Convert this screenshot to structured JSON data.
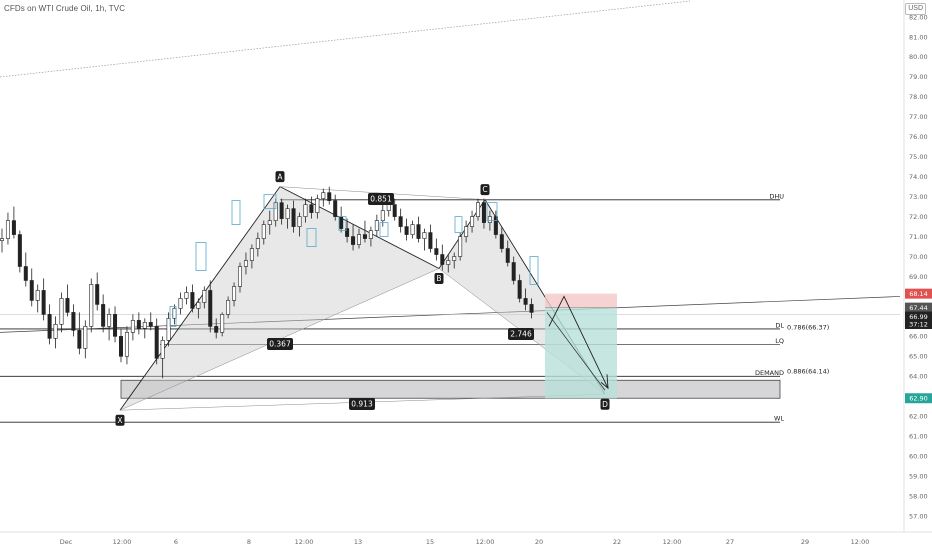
{
  "header": {
    "symbol_title": "CFDs on WTI Crude Oil, 1h, TVC",
    "currency": "USD"
  },
  "chart_data": {
    "type": "candlestick",
    "yaxis_ticks": [
      57.0,
      58.0,
      59.0,
      60.0,
      61.0,
      62.0,
      63.0,
      64.0,
      65.0,
      66.0,
      67.0,
      68.0,
      69.0,
      70.0,
      71.0,
      72.0,
      73.0,
      74.0,
      75.0,
      76.0,
      77.0,
      78.0,
      79.0,
      80.0,
      81.0,
      82.0
    ],
    "ylim": [
      56.6,
      83.2
    ],
    "xaxis_ticks": [
      "Dec",
      "12:00",
      "6",
      "8",
      "12:00",
      "13",
      "15",
      "12:00",
      "20",
      "22",
      "12:00",
      "27",
      "29",
      "12:00"
    ],
    "ohlc": [
      [
        70.8,
        71.4,
        70.2,
        70.9
      ],
      [
        70.9,
        72.2,
        70.6,
        71.8
      ],
      [
        71.8,
        72.5,
        70.9,
        71.1
      ],
      [
        71.1,
        71.3,
        69.2,
        69.5
      ],
      [
        69.5,
        70.2,
        68.5,
        68.8
      ],
      [
        68.8,
        69.4,
        67.5,
        67.8
      ],
      [
        67.8,
        68.6,
        67.2,
        68.3
      ],
      [
        68.3,
        68.9,
        66.8,
        67.1
      ],
      [
        67.1,
        67.6,
        65.6,
        65.9
      ],
      [
        65.9,
        67.0,
        65.4,
        66.6
      ],
      [
        66.6,
        68.2,
        66.2,
        67.9
      ],
      [
        67.9,
        68.6,
        67.0,
        67.2
      ],
      [
        67.2,
        67.6,
        66.0,
        66.3
      ],
      [
        66.3,
        67.2,
        65.1,
        65.4
      ],
      [
        65.4,
        66.8,
        64.9,
        66.5
      ],
      [
        66.5,
        68.9,
        66.2,
        68.6
      ],
      [
        68.6,
        69.2,
        67.3,
        67.6
      ],
      [
        67.6,
        68.1,
        66.2,
        66.5
      ],
      [
        66.5,
        67.4,
        65.8,
        67.1
      ],
      [
        67.1,
        67.5,
        65.7,
        66.0
      ],
      [
        66.0,
        66.4,
        64.7,
        65.0
      ],
      [
        65.0,
        66.5,
        64.6,
        66.2
      ],
      [
        66.2,
        67.1,
        65.8,
        66.8
      ],
      [
        66.8,
        67.2,
        66.1,
        66.4
      ],
      [
        66.4,
        66.9,
        65.9,
        66.7
      ],
      [
        66.7,
        67.2,
        66.3,
        66.5
      ],
      [
        66.5,
        66.9,
        64.6,
        64.9
      ],
      [
        64.9,
        66.0,
        63.9,
        65.8
      ],
      [
        65.8,
        67.2,
        65.5,
        66.9
      ],
      [
        66.9,
        67.6,
        66.6,
        67.4
      ],
      [
        67.4,
        68.2,
        67.1,
        67.9
      ],
      [
        67.9,
        68.5,
        67.6,
        68.2
      ],
      [
        68.2,
        68.6,
        67.2,
        67.4
      ],
      [
        67.4,
        67.9,
        66.9,
        67.7
      ],
      [
        67.7,
        68.5,
        67.4,
        68.3
      ],
      [
        68.3,
        68.8,
        66.2,
        66.5
      ],
      [
        66.5,
        66.9,
        65.9,
        66.2
      ],
      [
        66.2,
        67.2,
        66.0,
        67.1
      ],
      [
        67.1,
        68.0,
        66.9,
        67.8
      ],
      [
        67.8,
        68.7,
        67.5,
        68.5
      ],
      [
        68.5,
        69.7,
        68.2,
        69.5
      ],
      [
        69.5,
        70.2,
        69.1,
        69.8
      ],
      [
        69.8,
        70.6,
        69.4,
        70.4
      ],
      [
        70.4,
        71.2,
        70.0,
        70.9
      ],
      [
        70.9,
        71.8,
        70.6,
        71.6
      ],
      [
        71.6,
        72.3,
        71.1,
        71.8
      ],
      [
        71.8,
        72.9,
        71.5,
        72.7
      ],
      [
        72.7,
        72.9,
        71.6,
        71.9
      ],
      [
        71.9,
        72.6,
        71.4,
        72.4
      ],
      [
        72.4,
        72.8,
        71.2,
        71.5
      ],
      [
        71.5,
        72.2,
        71.0,
        72.0
      ],
      [
        72.0,
        72.9,
        71.7,
        72.6
      ],
      [
        72.6,
        73.0,
        71.9,
        72.2
      ],
      [
        72.2,
        73.1,
        71.9,
        72.9
      ],
      [
        72.9,
        73.4,
        72.5,
        73.2
      ],
      [
        73.2,
        73.5,
        72.6,
        72.8
      ],
      [
        72.8,
        73.1,
        71.8,
        72.0
      ],
      [
        72.0,
        72.5,
        71.2,
        71.4
      ],
      [
        71.4,
        71.9,
        70.7,
        71.0
      ],
      [
        71.0,
        71.6,
        70.3,
        70.6
      ],
      [
        70.6,
        71.4,
        70.4,
        71.1
      ],
      [
        71.1,
        71.8,
        70.7,
        70.9
      ],
      [
        70.9,
        71.5,
        70.5,
        71.3
      ],
      [
        71.3,
        72.1,
        71.0,
        71.8
      ],
      [
        71.8,
        72.6,
        71.5,
        72.3
      ],
      [
        72.3,
        72.9,
        72.0,
        72.6
      ],
      [
        72.6,
        72.9,
        71.8,
        72.0
      ],
      [
        72.0,
        72.4,
        71.2,
        71.5
      ],
      [
        71.5,
        71.9,
        70.8,
        71.1
      ],
      [
        71.1,
        71.8,
        70.9,
        71.6
      ],
      [
        71.6,
        72.0,
        70.7,
        70.9
      ],
      [
        70.9,
        71.4,
        70.3,
        71.2
      ],
      [
        71.2,
        71.6,
        70.2,
        70.4
      ],
      [
        70.4,
        70.9,
        69.8,
        70.1
      ],
      [
        70.1,
        70.6,
        69.3,
        69.6
      ],
      [
        69.6,
        70.1,
        69.2,
        69.8
      ],
      [
        69.8,
        70.2,
        69.4,
        70.0
      ],
      [
        70.0,
        71.2,
        69.8,
        71.0
      ],
      [
        71.0,
        71.8,
        70.7,
        71.5
      ],
      [
        71.5,
        72.3,
        71.2,
        72.0
      ],
      [
        72.0,
        72.9,
        71.8,
        72.7
      ],
      [
        72.7,
        72.9,
        71.4,
        71.7
      ],
      [
        71.7,
        72.3,
        71.3,
        72.0
      ],
      [
        72.0,
        72.3,
        70.9,
        71.1
      ],
      [
        71.1,
        71.5,
        70.2,
        70.4
      ],
      [
        70.4,
        70.8,
        69.5,
        69.7
      ],
      [
        69.7,
        70.0,
        68.6,
        68.8
      ],
      [
        68.8,
        69.1,
        67.7,
        67.9
      ],
      [
        67.9,
        68.4,
        67.3,
        67.6
      ],
      [
        67.6,
        67.9,
        66.9,
        67.2
      ]
    ],
    "levels": [
      {
        "name": "DHU",
        "value": 72.84
      },
      {
        "name": "DL",
        "value": 66.37,
        "fib_label": "0.786(66.37)"
      },
      {
        "name": "LQ",
        "value": 65.6
      },
      {
        "name": "DEMAND",
        "value": 64.0,
        "fib_label": "0.886(64.14)"
      },
      {
        "name": "WL",
        "value": 61.7
      }
    ],
    "demand_zone": [
      62.9,
      63.8
    ],
    "pattern_points": [
      {
        "label": "X",
        "x_index": 30,
        "value": 62.3
      },
      {
        "label": "A",
        "x_index": 54,
        "value": 73.5
      },
      {
        "label": "B",
        "x_index": 77,
        "value": 69.4
      },
      {
        "label": "C",
        "x_index": 84,
        "value": 72.9
      },
      {
        "label": "D",
        "x_index": 108,
        "value": 63.1
      }
    ],
    "ratios": [
      {
        "label": "0.851",
        "value": 73.1
      },
      {
        "label": "0.367",
        "value": 65.7
      },
      {
        "label": "2.746",
        "value": 66.1
      },
      {
        "label": "0.913",
        "value": 63.3
      }
    ],
    "position": {
      "entry": 67.44,
      "stop": 68.14,
      "target": 62.9
    },
    "price_tags": [
      {
        "label": "68.14",
        "value": 68.14,
        "color": "#e05252"
      },
      {
        "label": "67.44",
        "value": 67.44,
        "color": "#555555"
      },
      {
        "label": "66.99",
        "value": 66.99,
        "color": "#222222"
      },
      {
        "label": "37:12",
        "value": 66.62,
        "color": "#222222"
      },
      {
        "label": "62.90",
        "value": 62.9,
        "color": "#26a69a"
      }
    ],
    "colors": {
      "up": "#222222",
      "down": "#222222",
      "pattern_fill": "#cccccc",
      "stop_fill": "#f4c7c7",
      "target_fill": "#b7e0da"
    }
  }
}
